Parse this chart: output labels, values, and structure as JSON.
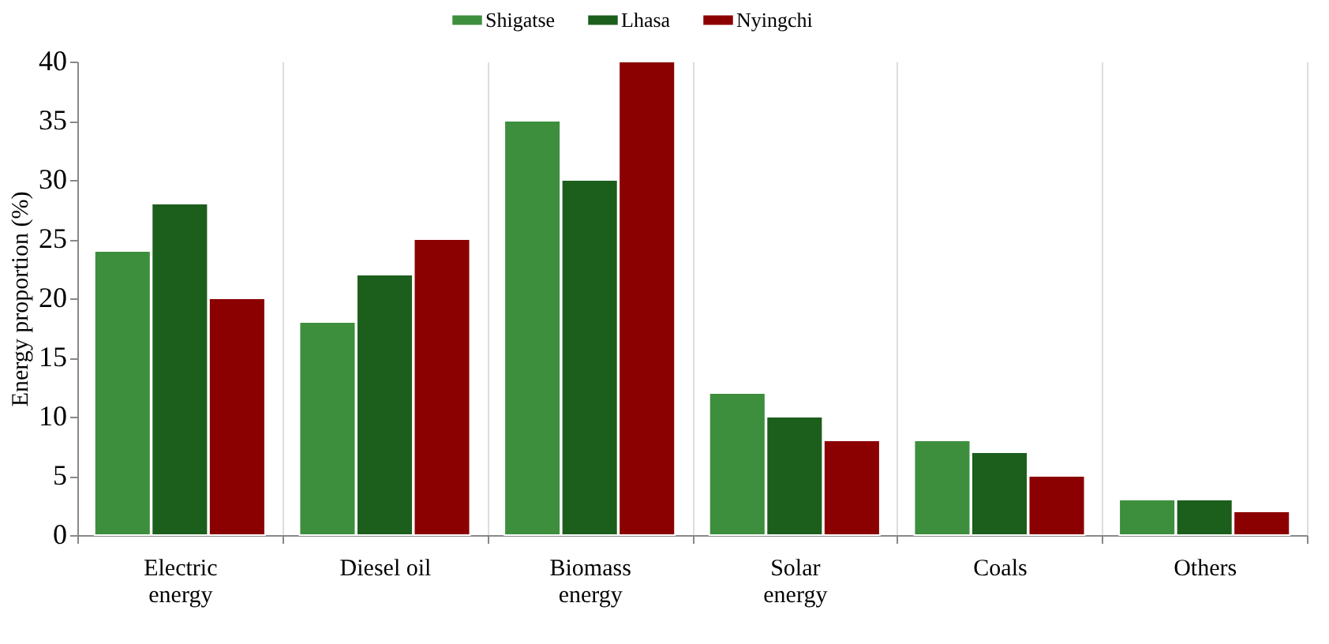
{
  "chart_data": {
    "type": "bar",
    "ylabel": "Energy proportion (%)",
    "categories": [
      "Electric\nenergy",
      "Diesel oil",
      "Biomass\nenergy",
      "Solar\nenergy",
      "Coals",
      "Others"
    ],
    "series": [
      {
        "name": "Shigatse",
        "color": "#3d8f3d",
        "values": [
          24,
          18,
          35,
          12,
          8,
          3
        ]
      },
      {
        "name": "Lhasa",
        "color": "#1c5e1c",
        "values": [
          28,
          22,
          30,
          10,
          7,
          3
        ]
      },
      {
        "name": "Nyingchi",
        "color": "#8b0000",
        "values": [
          20,
          25,
          40,
          8,
          5,
          2
        ]
      }
    ],
    "ylim": [
      0,
      40
    ],
    "yticks": [
      0,
      5,
      10,
      15,
      20,
      25,
      30,
      35,
      40
    ],
    "grid": "x",
    "legend": "top"
  }
}
